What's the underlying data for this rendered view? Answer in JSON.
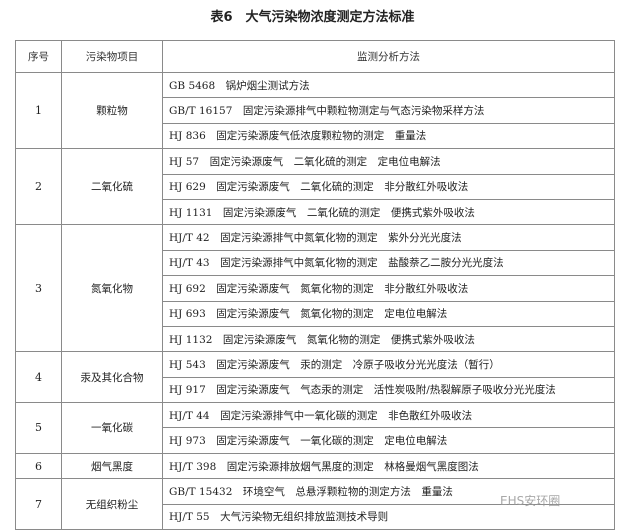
{
  "title": "表6　大气污染物浓度测定方法标准",
  "headers": {
    "seq": "序号",
    "item": "污染物项目",
    "method": "监测分析方法"
  },
  "groups": [
    {
      "seq": "1",
      "item": "颗粒物",
      "methods": [
        "GB 5468　锅炉烟尘测试方法",
        "GB/T 16157　固定污染源排气中颗粒物测定与气态污染物采样方法",
        "HJ 836　固定污染源废气低浓度颗粒物的测定　重量法"
      ]
    },
    {
      "seq": "2",
      "item": "二氧化硫",
      "methods": [
        "HJ 57　固定污染源废气　二氧化硫的测定　定电位电解法",
        "HJ 629　固定污染源废气　二氧化硫的测定　非分散红外吸收法",
        "HJ 1131　固定污染源废气　二氧化硫的测定　便携式紫外吸收法"
      ]
    },
    {
      "seq": "3",
      "item": "氮氧化物",
      "methods": [
        "HJ/T 42　固定污染源排气中氮氧化物的测定　紫外分光光度法",
        "HJ/T 43　固定污染源排气中氮氧化物的测定　盐酸萘乙二胺分光光度法",
        "HJ 692　固定污染源废气　氮氧化物的测定　非分散红外吸收法",
        "HJ 693　固定污染源废气　氮氧化物的测定　定电位电解法",
        "HJ 1132　固定污染源废气　氮氧化物的测定　便携式紫外吸收法"
      ]
    },
    {
      "seq": "4",
      "item": "汞及其化合物",
      "methods": [
        "HJ 543　固定污染源废气　汞的测定　冷原子吸收分光光度法（暂行）",
        "HJ 917　固定污染源废气　气态汞的测定　活性炭吸附/热裂解原子吸收分光光度法"
      ]
    },
    {
      "seq": "5",
      "item": "一氧化碳",
      "methods": [
        "HJ/T 44　固定污染源排气中一氧化碳的测定　非色散红外吸收法",
        "HJ 973　固定污染源废气　一氧化碳的测定　定电位电解法"
      ]
    },
    {
      "seq": "6",
      "item": "烟气黑度",
      "methods": [
        "HJ/T 398　固定污染源排放烟气黑度的测定　林格曼烟气黑度图法"
      ]
    },
    {
      "seq": "7",
      "item": "无组织粉尘",
      "methods": [
        "GB/T 15432　环境空气　总悬浮颗粒物的测定方法　重量法",
        "HJ/T 55　大气污染物无组织排放监测技术导则"
      ]
    }
  ],
  "watermark": "EHS安环圈"
}
